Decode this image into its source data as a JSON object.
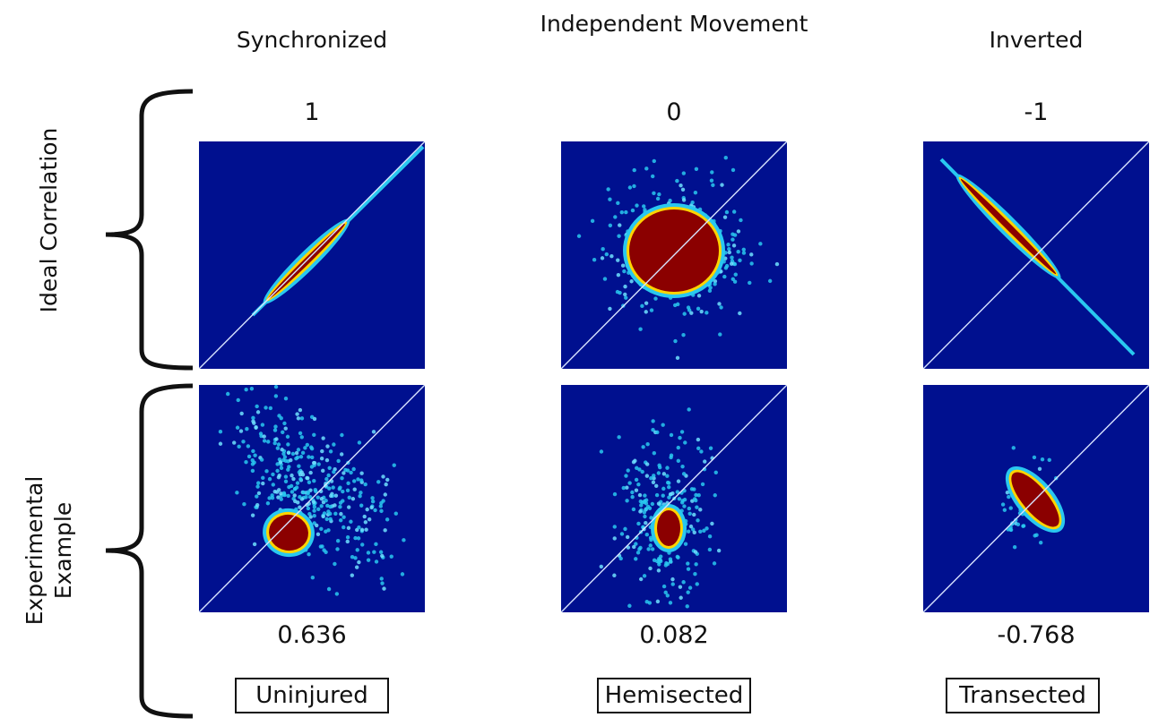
{
  "columns": [
    {
      "title": "Synchronized",
      "ideal_value": "1",
      "experimental_value": "0.636",
      "condition": "Uninjured"
    },
    {
      "title": "Independent Movement",
      "ideal_value": "0",
      "experimental_value": "0.082",
      "condition": "Hemisected"
    },
    {
      "title": "Inverted",
      "ideal_value": "-1",
      "experimental_value": "-0.768",
      "condition": "Transected"
    }
  ],
  "rows": [
    {
      "label": "Ideal Correlation"
    },
    {
      "label": "Experimental Example"
    }
  ],
  "colors": {
    "background": "#00108f",
    "core": "#8b0000",
    "mid": "#ffd400",
    "edge": "#29c8f0",
    "diagonal": "#d8e4ff"
  }
}
